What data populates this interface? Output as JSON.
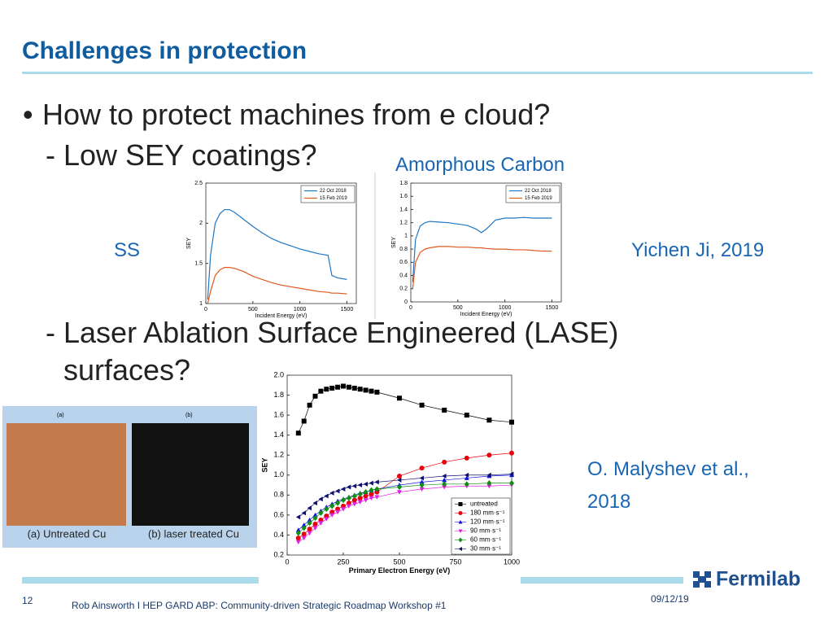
{
  "title": "Challenges in protection",
  "bullet": "How to protect machines from e cloud?",
  "sub_items": [
    "Low SEY coatings?",
    "Laser Ablation Surface Engineered (LASE) surfaces?"
  ],
  "annotations": {
    "coating": "Amorphous Carbon",
    "substrate": "SS",
    "source_1": "Yichen Ji, 2019",
    "source_2": "O. Malyshev et al., 2018"
  },
  "photo": {
    "label_a": "(a)",
    "label_b": "(b)",
    "caption_a": "(a) Untreated Cu",
    "caption_b": "(b) laser treated Cu"
  },
  "footer": {
    "page": "12",
    "text": "Rob Ainsworth I HEP GARD ABP: Community-driven Strategic Roadmap Workshop #1",
    "date": "09/12/19",
    "logo": "Fermilab"
  },
  "chart_data": [
    {
      "type": "line",
      "x_label": "Incident Energy (eV)",
      "y_label": "SEY",
      "xlim": [
        0,
        1600
      ],
      "ylim": [
        1,
        2.5
      ],
      "xticks": [
        0,
        500,
        1000,
        1500
      ],
      "yticks": [
        1,
        1.5,
        2,
        2.5
      ],
      "legend": "upper right",
      "x": [
        20,
        50,
        100,
        150,
        200,
        250,
        300,
        400,
        500,
        600,
        700,
        800,
        900,
        1000,
        1100,
        1200,
        1300,
        1340,
        1400,
        1500
      ],
      "series": [
        {
          "name": "22 Oct 2018",
          "color": "#1f77c4",
          "values": [
            1.05,
            1.6,
            2.0,
            2.12,
            2.17,
            2.17,
            2.14,
            2.05,
            1.96,
            1.88,
            1.81,
            1.76,
            1.72,
            1.68,
            1.65,
            1.62,
            1.6,
            1.35,
            1.32,
            1.3
          ]
        },
        {
          "name": "15 Feb 2019",
          "color": "#e0591f",
          "values": [
            1.0,
            1.15,
            1.35,
            1.42,
            1.45,
            1.45,
            1.44,
            1.4,
            1.34,
            1.3,
            1.26,
            1.23,
            1.21,
            1.19,
            1.17,
            1.15,
            1.14,
            1.13,
            1.13,
            1.12
          ]
        }
      ]
    },
    {
      "type": "line",
      "x_label": "Incident Energy (eV)",
      "y_label": "SEY",
      "xlim": [
        0,
        1600
      ],
      "ylim": [
        0,
        1.8
      ],
      "xticks": [
        0,
        500,
        1000,
        1500
      ],
      "yticks": [
        0,
        0.2,
        0.4,
        0.6,
        0.8,
        1,
        1.2,
        1.4,
        1.6,
        1.8
      ],
      "legend": "upper right",
      "x": [
        20,
        50,
        100,
        150,
        200,
        300,
        400,
        500,
        600,
        700,
        750,
        800,
        900,
        1000,
        1100,
        1200,
        1300,
        1400,
        1500
      ],
      "series": [
        {
          "name": "22 Oct 2018",
          "color": "#1f77c4",
          "values": [
            0.3,
            0.95,
            1.15,
            1.2,
            1.22,
            1.21,
            1.2,
            1.18,
            1.16,
            1.1,
            1.05,
            1.1,
            1.24,
            1.27,
            1.27,
            1.28,
            1.27,
            1.27,
            1.27
          ]
        },
        {
          "name": "15 Feb 2019",
          "color": "#e0591f",
          "values": [
            0.2,
            0.6,
            0.75,
            0.8,
            0.82,
            0.84,
            0.84,
            0.83,
            0.83,
            0.82,
            0.82,
            0.81,
            0.8,
            0.8,
            0.79,
            0.79,
            0.78,
            0.77,
            0.77
          ]
        }
      ]
    },
    {
      "type": "scatter",
      "x_label": "Primary Electron Energy (eV)",
      "y_label": "SEY",
      "xlim": [
        0,
        1000
      ],
      "ylim": [
        0.2,
        2.0
      ],
      "xticks": [
        0,
        250,
        500,
        750,
        1000
      ],
      "yticks": [
        0.2,
        0.4,
        0.6,
        0.8,
        {
          "value": 1.0,
          "label": "1.0"
        },
        1.2,
        1.4,
        1.6,
        1.8,
        {
          "value": 2.0,
          "label": "2.0"
        }
      ],
      "legend": "lower right",
      "x": [
        50,
        75,
        100,
        125,
        150,
        175,
        200,
        225,
        250,
        275,
        300,
        325,
        350,
        375,
        400,
        500,
        600,
        700,
        800,
        900,
        1000
      ],
      "series": [
        {
          "name": "untreated",
          "color": "#000000",
          "marker": "square",
          "values": [
            1.42,
            1.54,
            1.7,
            1.79,
            1.84,
            1.86,
            1.87,
            1.88,
            1.89,
            1.88,
            1.87,
            1.86,
            1.85,
            1.84,
            1.83,
            1.77,
            1.7,
            1.65,
            1.6,
            1.55,
            1.53
          ]
        },
        {
          "name": "180 mm·s⁻¹",
          "color": "#e8000b",
          "marker": "circle",
          "values": [
            0.37,
            0.41,
            0.46,
            0.51,
            0.55,
            0.59,
            0.63,
            0.66,
            0.69,
            0.72,
            0.75,
            0.77,
            0.79,
            0.81,
            0.83,
            0.99,
            1.07,
            1.13,
            1.17,
            1.2,
            1.22
          ]
        },
        {
          "name": "120 mm·s⁻¹",
          "color": "#1010e0",
          "marker": "triangle-up",
          "values": [
            0.45,
            0.5,
            0.55,
            0.6,
            0.64,
            0.68,
            0.71,
            0.74,
            0.76,
            0.78,
            0.8,
            0.82,
            0.83,
            0.85,
            0.86,
            0.9,
            0.93,
            0.95,
            0.97,
            0.99,
            1.0
          ]
        },
        {
          "name": "90 mm·s⁻¹",
          "color": "#e020e0",
          "marker": "triangle-down",
          "values": [
            0.33,
            0.37,
            0.42,
            0.47,
            0.52,
            0.56,
            0.6,
            0.63,
            0.66,
            0.69,
            0.71,
            0.73,
            0.75,
            0.77,
            0.78,
            0.83,
            0.86,
            0.88,
            0.89,
            0.89,
            0.9
          ]
        },
        {
          "name": "60 mm·s⁻¹",
          "color": "#109010",
          "marker": "diamond",
          "values": [
            0.42,
            0.47,
            0.52,
            0.57,
            0.62,
            0.66,
            0.69,
            0.72,
            0.75,
            0.77,
            0.79,
            0.81,
            0.83,
            0.85,
            0.86,
            0.88,
            0.9,
            0.91,
            0.91,
            0.92,
            0.92
          ]
        },
        {
          "name": "30 mm·s⁻¹",
          "color": "#10106e",
          "marker": "triangle-left",
          "values": [
            0.58,
            0.62,
            0.67,
            0.72,
            0.76,
            0.79,
            0.82,
            0.84,
            0.86,
            0.88,
            0.89,
            0.9,
            0.91,
            0.92,
            0.93,
            0.95,
            0.97,
            0.99,
            1.0,
            1.0,
            1.01
          ]
        }
      ]
    }
  ]
}
